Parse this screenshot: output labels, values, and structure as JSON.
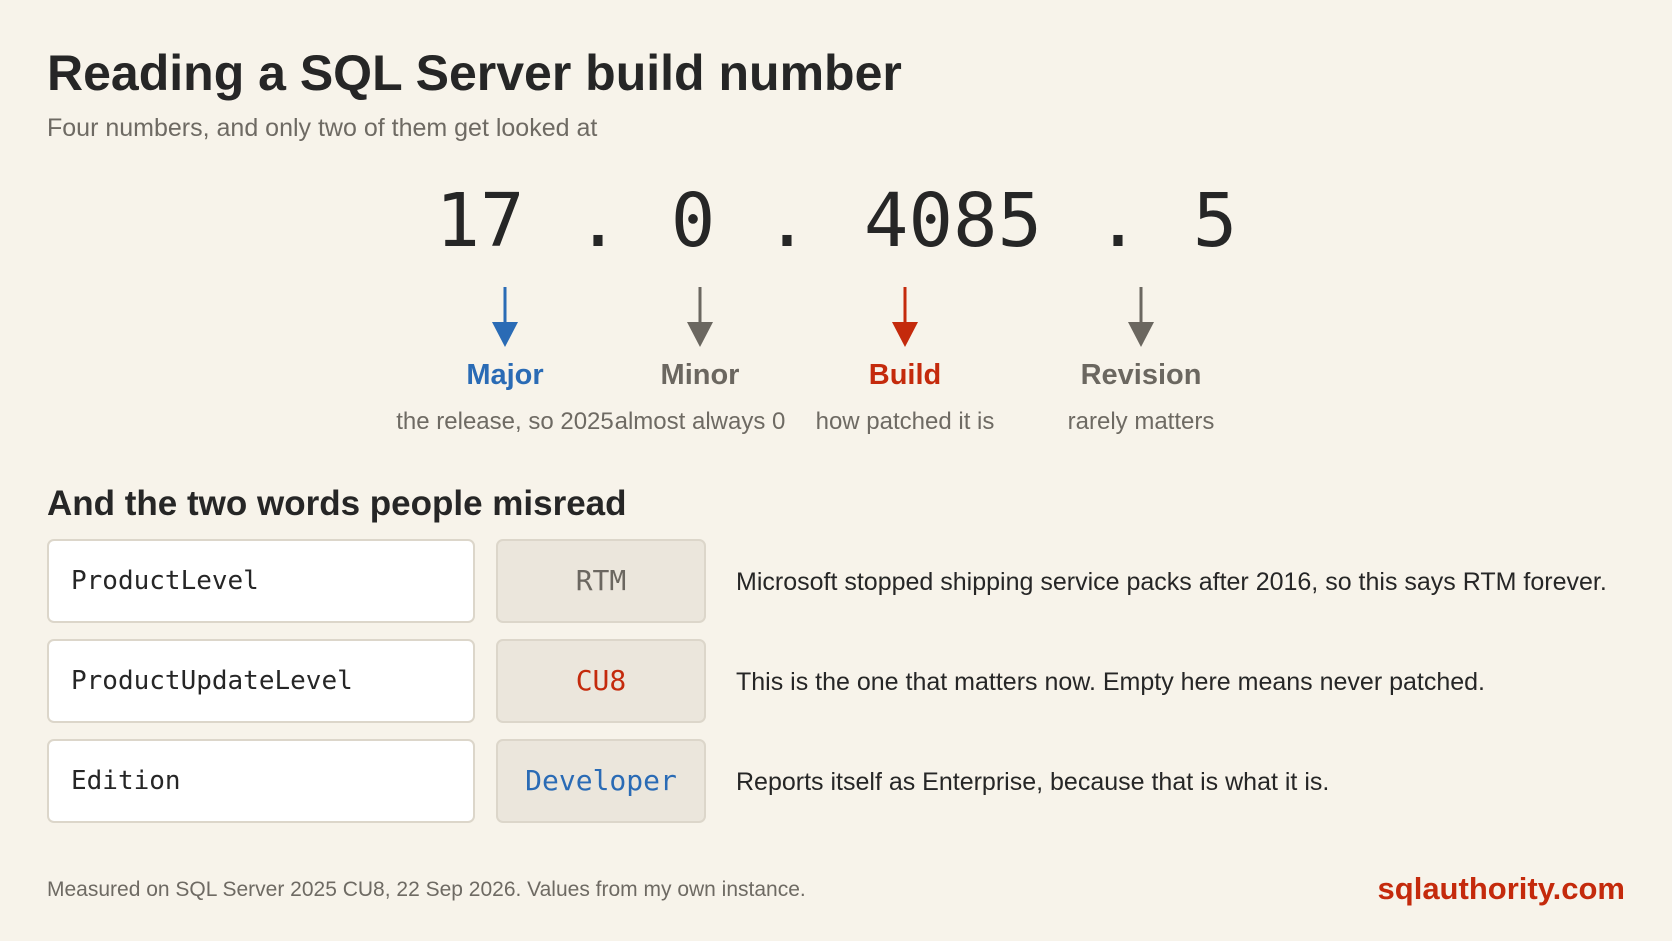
{
  "title": "Reading a SQL Server build number",
  "subtitle": "Four numbers, and only two of them get looked at",
  "version": {
    "major": "17",
    "minor": "0",
    "build": "4085",
    "revision": "5",
    "separator": "."
  },
  "parts": [
    {
      "label": "Major",
      "description": "the release, so 2025",
      "color": "#2a6bb5",
      "arrow": "down-arrow-icon"
    },
    {
      "label": "Minor",
      "description": "almost always 0",
      "color": "#6b6760",
      "arrow": "down-arrow-icon"
    },
    {
      "label": "Build",
      "description": "how patched it is",
      "color": "#c42a0c",
      "arrow": "down-arrow-icon"
    },
    {
      "label": "Revision",
      "description": "rarely matters",
      "color": "#6b6760",
      "arrow": "down-arrow-icon"
    }
  ],
  "section_title": "And the two words people misread",
  "rows": [
    {
      "key": "ProductLevel",
      "value": "RTM",
      "value_color": "#6b6760",
      "description": "Microsoft stopped shipping service packs after 2016, so this says RTM forever."
    },
    {
      "key": "ProductUpdateLevel",
      "value": "CU8",
      "value_color": "#c42a0c",
      "description": "This is the one that matters now. Empty here means never patched."
    },
    {
      "key": "Edition",
      "value": "Developer",
      "value_color": "#2a6bb5",
      "description": "Reports itself as Enterprise, because that is what it is."
    }
  ],
  "footer": {
    "note": "Measured on SQL Server 2025 CU8, 22 Sep 2026. Values from my own instance.",
    "brand": "sqlauthority.com"
  },
  "colors": {
    "background": "#f7f3ea",
    "text": "#262626",
    "muted": "#6e6a63",
    "blue": "#2a6bb5",
    "red": "#c42a0c",
    "gray": "#6b6760"
  }
}
